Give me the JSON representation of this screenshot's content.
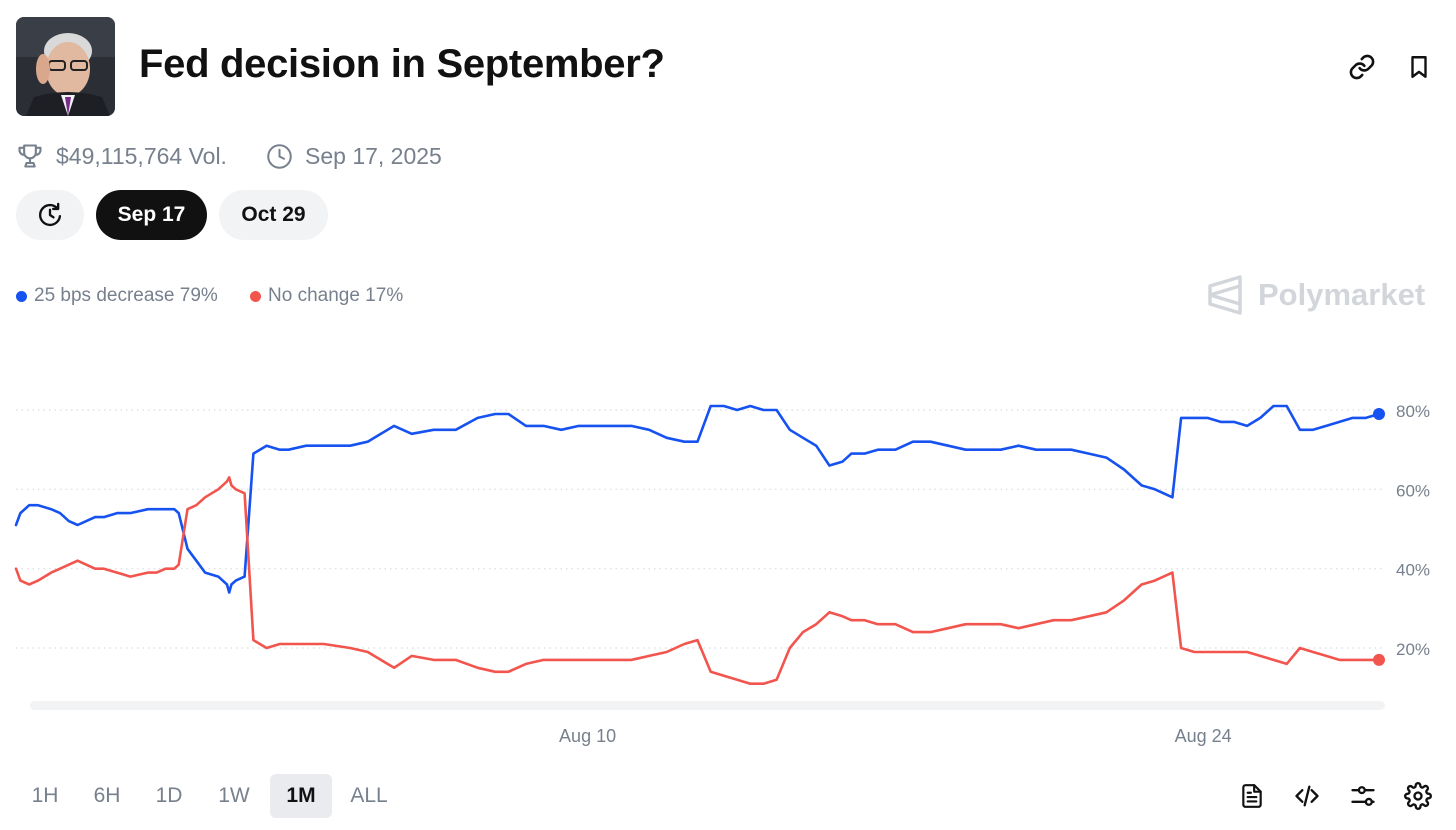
{
  "market": {
    "title": "Fed decision in September?",
    "volume": "$49,115,764 Vol.",
    "end_date": "Sep 17, 2025"
  },
  "date_tabs": [
    {
      "label": "Sep 17",
      "active": true
    },
    {
      "label": "Oct 29",
      "active": false
    }
  ],
  "legend": [
    {
      "label": "25 bps decrease 79%",
      "color": "#1652f0"
    },
    {
      "label": "No change 17%",
      "color": "#f2554d"
    }
  ],
  "watermark": "Polymarket",
  "time_ranges": [
    {
      "label": "1H",
      "active": false
    },
    {
      "label": "6H",
      "active": false
    },
    {
      "label": "1D",
      "active": false
    },
    {
      "label": "1W",
      "active": false
    },
    {
      "label": "1M",
      "active": true
    },
    {
      "label": "ALL",
      "active": false
    }
  ],
  "icons": [
    "link-icon",
    "bookmark-icon",
    "trophy-icon",
    "clock-icon",
    "history-icon",
    "document-icon",
    "code-icon",
    "sliders-icon",
    "settings-icon"
  ],
  "chart_data": {
    "type": "line",
    "title": "",
    "xlabel": "",
    "ylabel": "",
    "x_unit": "days since Jul 31",
    "xlim": [
      0,
      31
    ],
    "ylim": [
      5,
      85
    ],
    "y_ticks": [
      {
        "value": 80,
        "label": "80%"
      },
      {
        "value": 60,
        "label": "60%"
      },
      {
        "value": 40,
        "label": "40%"
      },
      {
        "value": 20,
        "label": "20%"
      }
    ],
    "x_ticks": [
      {
        "value": 13,
        "label": "Aug 10"
      },
      {
        "value": 27,
        "label": "Aug 24"
      }
    ],
    "grid": true,
    "series": [
      {
        "name": "25 bps decrease",
        "color": "#1652f0",
        "x": [
          0,
          0.1,
          0.3,
          0.5,
          0.8,
          1.0,
          1.2,
          1.4,
          1.6,
          1.8,
          2.0,
          2.3,
          2.6,
          3.0,
          3.2,
          3.4,
          3.6,
          3.7,
          3.9,
          4.1,
          4.3,
          4.6,
          4.8,
          4.85,
          4.9,
          5.0,
          5.2,
          5.4,
          5.7,
          6.0,
          6.2,
          6.6,
          7.0,
          7.6,
          8.0,
          8.3,
          8.6,
          9.0,
          9.5,
          10.0,
          10.5,
          10.9,
          11.2,
          11.6,
          12.0,
          12.4,
          12.8,
          13.2,
          13.6,
          14.0,
          14.4,
          14.8,
          15.2,
          15.5,
          15.8,
          16.1,
          16.4,
          16.7,
          17.0,
          17.3,
          17.6,
          17.9,
          18.2,
          18.5,
          18.8,
          19.0,
          19.3,
          19.6,
          20.0,
          20.4,
          20.8,
          21.2,
          21.6,
          22.0,
          22.4,
          22.8,
          23.2,
          23.6,
          24.0,
          24.4,
          24.8,
          25.2,
          25.6,
          25.9,
          26.1,
          26.3,
          26.5,
          26.8,
          27.1,
          27.4,
          27.7,
          28.0,
          28.3,
          28.6,
          28.9,
          29.2,
          29.5,
          29.8,
          30.1,
          30.4,
          30.7,
          31.0
        ],
        "values": [
          51,
          54,
          56,
          56,
          55,
          54,
          52,
          51,
          52,
          53,
          53,
          54,
          54,
          55,
          55,
          55,
          55,
          54,
          45,
          42,
          39,
          38,
          36,
          34,
          36,
          37,
          38,
          69,
          71,
          70,
          70,
          71,
          71,
          71,
          72,
          74,
          76,
          74,
          75,
          75,
          78,
          79,
          79,
          76,
          76,
          75,
          76,
          76,
          76,
          76,
          75,
          73,
          72,
          72,
          81,
          81,
          80,
          81,
          80,
          80,
          75,
          73,
          71,
          66,
          67,
          69,
          69,
          70,
          70,
          72,
          72,
          71,
          70,
          70,
          70,
          71,
          70,
          70,
          70,
          69,
          68,
          65,
          61,
          60,
          59,
          58,
          78,
          78,
          78,
          77,
          77,
          76,
          78,
          81,
          81,
          75,
          75,
          76,
          77,
          78,
          78,
          79
        ]
      },
      {
        "name": "No change",
        "color": "#f2554d",
        "x": [
          0,
          0.1,
          0.3,
          0.5,
          0.8,
          1.0,
          1.2,
          1.4,
          1.6,
          1.8,
          2.0,
          2.3,
          2.6,
          3.0,
          3.2,
          3.4,
          3.6,
          3.7,
          3.9,
          4.1,
          4.3,
          4.6,
          4.8,
          4.85,
          4.9,
          5.0,
          5.2,
          5.4,
          5.7,
          6.0,
          6.2,
          6.6,
          7.0,
          7.6,
          8.0,
          8.3,
          8.6,
          9.0,
          9.5,
          10.0,
          10.5,
          10.9,
          11.2,
          11.6,
          12.0,
          12.4,
          12.8,
          13.2,
          13.6,
          14.0,
          14.4,
          14.8,
          15.2,
          15.5,
          15.8,
          16.1,
          16.4,
          16.7,
          17.0,
          17.3,
          17.6,
          17.9,
          18.2,
          18.5,
          18.8,
          19.0,
          19.3,
          19.6,
          20.0,
          20.4,
          20.8,
          21.2,
          21.6,
          22.0,
          22.4,
          22.8,
          23.2,
          23.6,
          24.0,
          24.4,
          24.8,
          25.2,
          25.6,
          25.9,
          26.1,
          26.3,
          26.5,
          26.8,
          27.1,
          27.4,
          27.7,
          28.0,
          28.3,
          28.6,
          28.9,
          29.2,
          29.5,
          29.8,
          30.1,
          30.4,
          30.7,
          31.0
        ],
        "values": [
          40,
          37,
          36,
          37,
          39,
          40,
          41,
          42,
          41,
          40,
          40,
          39,
          38,
          39,
          39,
          40,
          40,
          41,
          55,
          56,
          58,
          60,
          62,
          63,
          61,
          60,
          59,
          22,
          20,
          21,
          21,
          21,
          21,
          20,
          19,
          17,
          15,
          18,
          17,
          17,
          15,
          14,
          14,
          16,
          17,
          17,
          17,
          17,
          17,
          17,
          18,
          19,
          21,
          22,
          14,
          13,
          12,
          11,
          11,
          12,
          20,
          24,
          26,
          29,
          28,
          27,
          27,
          26,
          26,
          24,
          24,
          25,
          26,
          26,
          26,
          25,
          26,
          27,
          27,
          28,
          29,
          32,
          36,
          37,
          38,
          39,
          20,
          19,
          19,
          19,
          19,
          19,
          18,
          17,
          16,
          20,
          19,
          18,
          17,
          17,
          17,
          17
        ]
      }
    ]
  }
}
